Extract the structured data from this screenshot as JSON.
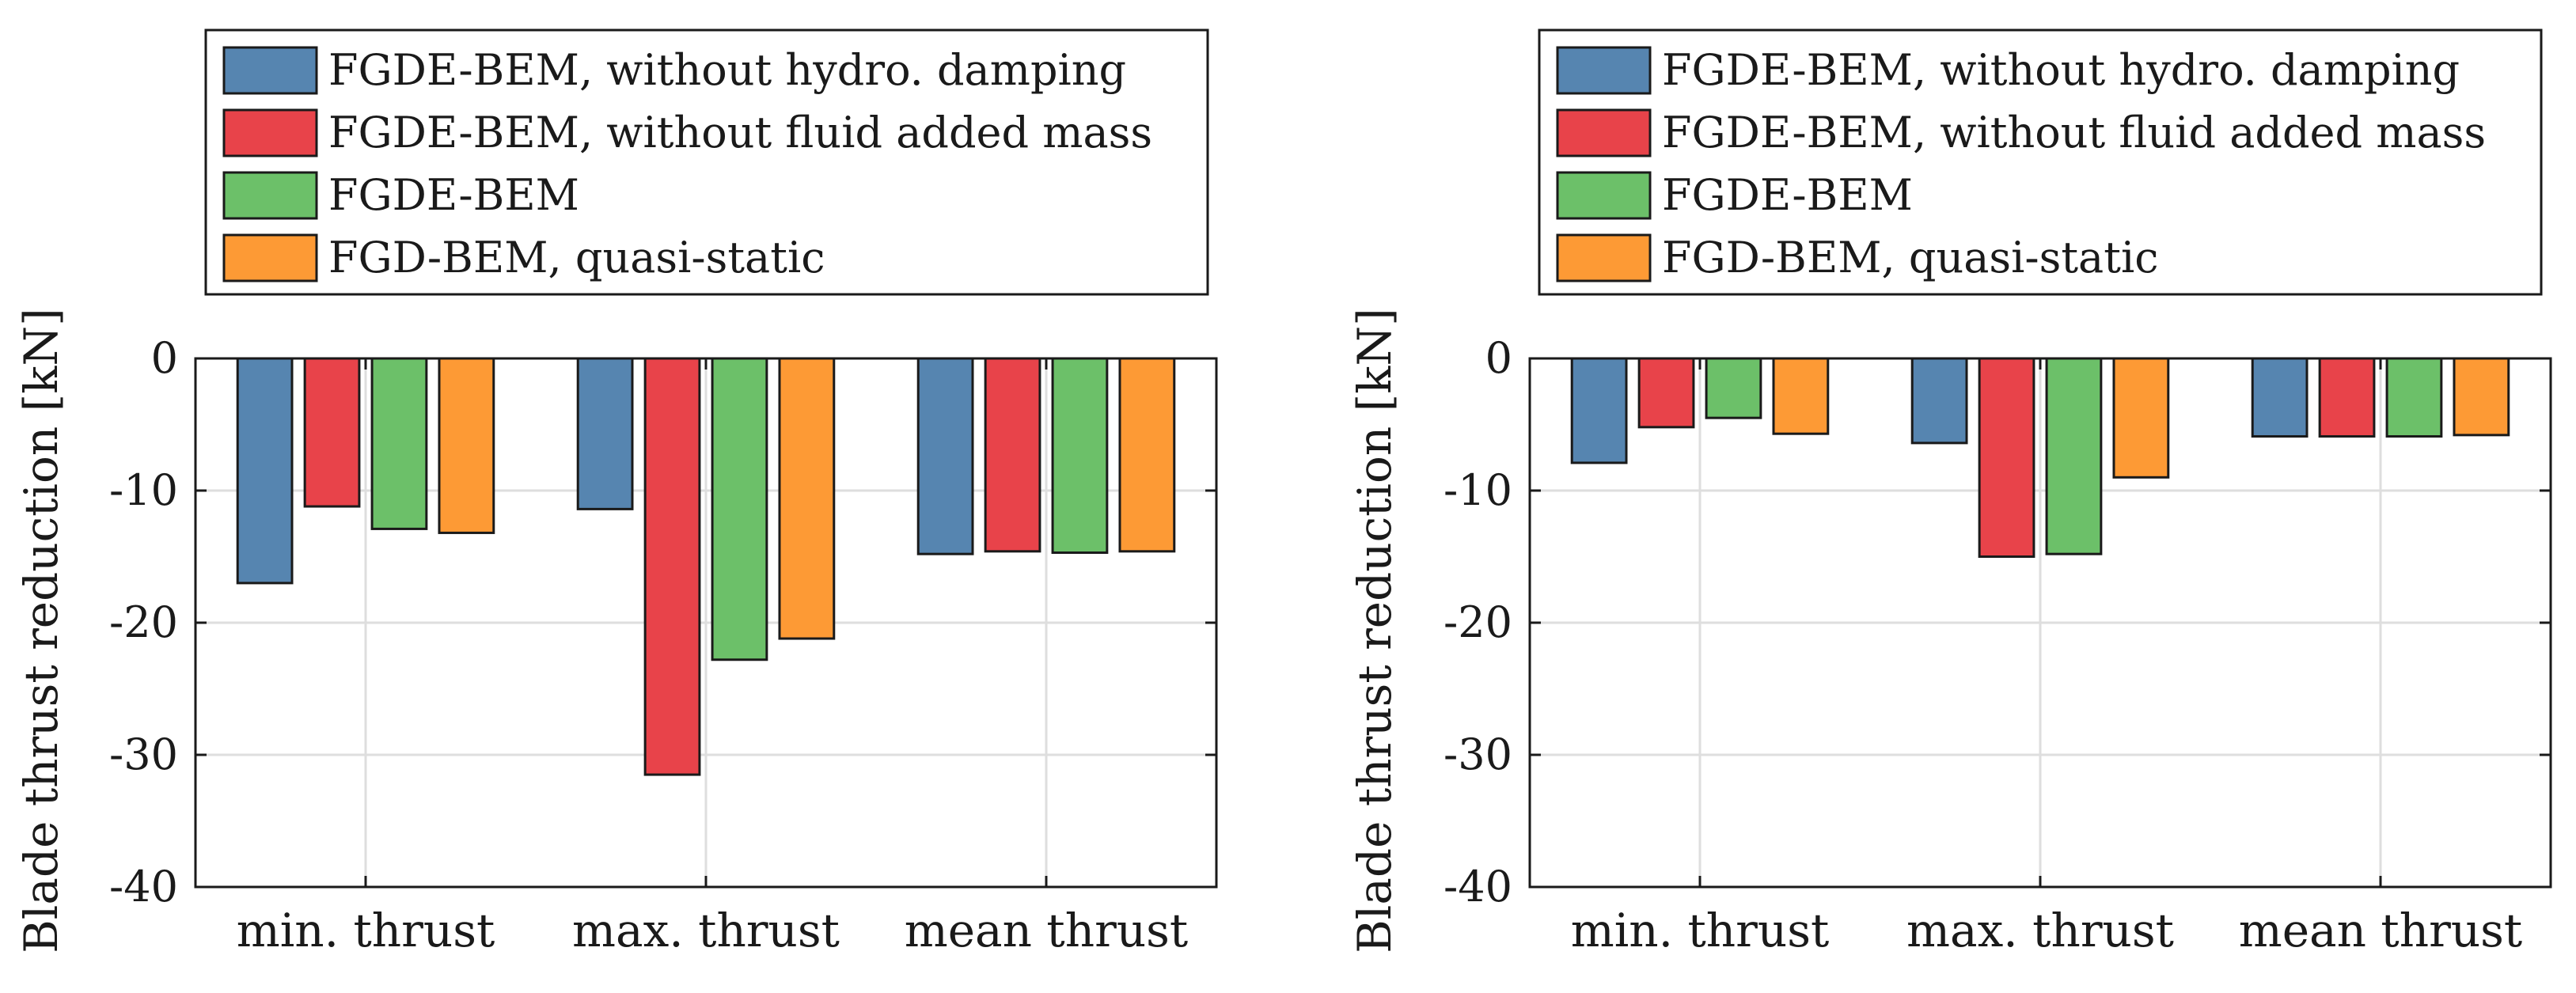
{
  "colors": {
    "series": [
      "#5685b0",
      "#e8434a",
      "#6cc069",
      "#fd9a35"
    ],
    "grid": "#dedede",
    "axis": "#1a1a1a"
  },
  "chart_data": [
    {
      "type": "bar",
      "title": "",
      "xlabel": "",
      "ylabel": "Blade thrust reduction [kN]",
      "ylim": [
        -40,
        0
      ],
      "yticks": [
        0,
        -10,
        -20,
        -30,
        -40
      ],
      "grid": true,
      "legend": "top-outside",
      "categories": [
        "min. thrust",
        "max. thrust",
        "mean thrust"
      ],
      "series": [
        {
          "name": "FGDE-BEM, without hydro. damping",
          "values": [
            -17.0,
            -11.4,
            -14.8
          ]
        },
        {
          "name": "FGDE-BEM, without fluid added mass",
          "values": [
            -11.2,
            -31.5,
            -14.6
          ]
        },
        {
          "name": "FGDE-BEM",
          "values": [
            -12.9,
            -22.8,
            -14.7
          ]
        },
        {
          "name": "FGD-BEM, quasi-static",
          "values": [
            -13.2,
            -21.2,
            -14.6
          ]
        }
      ]
    },
    {
      "type": "bar",
      "title": "",
      "xlabel": "",
      "ylabel": "Blade thrust reduction [kN]",
      "ylim": [
        -40,
        0
      ],
      "yticks": [
        0,
        -10,
        -20,
        -30,
        -40
      ],
      "grid": true,
      "legend": "top-outside",
      "categories": [
        "min. thrust",
        "max. thrust",
        "mean thrust"
      ],
      "series": [
        {
          "name": "FGDE-BEM, without hydro. damping",
          "values": [
            -7.9,
            -6.4,
            -5.9
          ]
        },
        {
          "name": "FGDE-BEM, without fluid added mass",
          "values": [
            -5.2,
            -15.0,
            -5.9
          ]
        },
        {
          "name": "FGDE-BEM",
          "values": [
            -4.5,
            -14.8,
            -5.9
          ]
        },
        {
          "name": "FGD-BEM, quasi-static",
          "values": [
            -5.7,
            -9.0,
            -5.8
          ]
        }
      ]
    }
  ]
}
